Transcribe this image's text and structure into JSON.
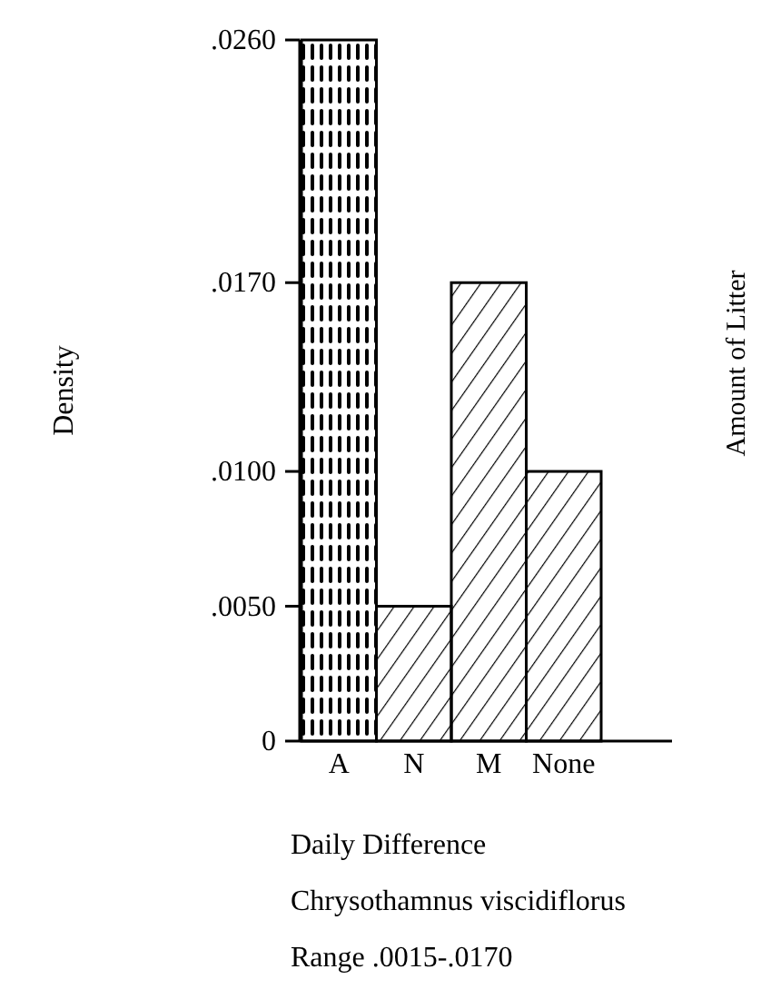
{
  "chart_data": {
    "type": "bar",
    "ylabel": "Density",
    "categories": [
      "A",
      "N",
      "M",
      "None"
    ],
    "values": [
      0.026,
      0.005,
      0.017,
      0.01
    ],
    "color": "#000000",
    "ylim": [
      0,
      0.026
    ],
    "yticks": [
      {
        "value": 0,
        "label": "0"
      },
      {
        "value": 0.005,
        "label": ".0050"
      },
      {
        "value": 0.01,
        "label": ".0100"
      },
      {
        "value": 0.017,
        "label": ".0170"
      },
      {
        "value": 0.026,
        "label": ".0260"
      }
    ],
    "grid": false,
    "annotations": [
      "Daily Difference",
      "Chrysothamnus viscidiflorus",
      "Range .0015-.0170",
      "Amount of Litter"
    ]
  }
}
